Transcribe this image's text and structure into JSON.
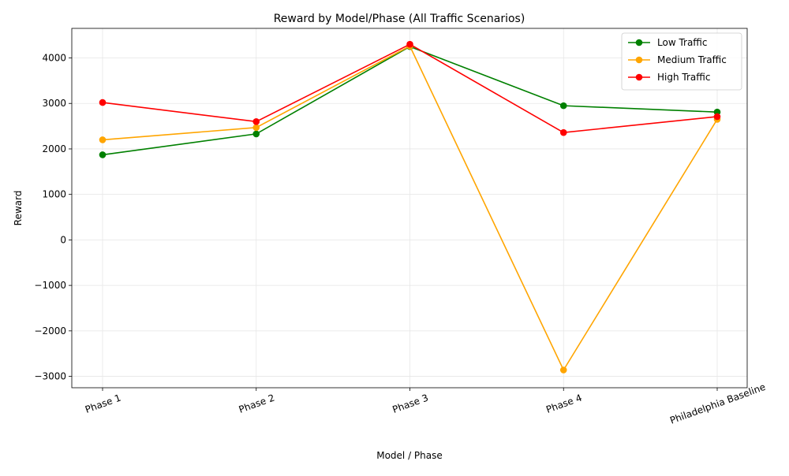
{
  "chart_data": {
    "type": "line",
    "title": "Reward by Model/Phase (All Traffic Scenarios)",
    "xlabel": "Model / Phase",
    "ylabel": "Reward",
    "categories": [
      "Phase 1",
      "Phase 2",
      "Phase 3",
      "Phase 4",
      "Philadelphia Baseline"
    ],
    "ylim": [
      -3250,
      4650
    ],
    "yticks": [
      -3000,
      -2000,
      -1000,
      0,
      1000,
      2000,
      3000,
      4000
    ],
    "ytick_labels": [
      "−3000",
      "−2000",
      "−1000",
      "0",
      "1000",
      "2000",
      "3000",
      "4000"
    ],
    "grid": true,
    "legend_position": "top-right",
    "series": [
      {
        "name": "Low Traffic",
        "color": "#008000",
        "values": [
          1870,
          2330,
          4250,
          2950,
          2810
        ]
      },
      {
        "name": "Medium Traffic",
        "color": "#ffa500",
        "values": [
          2200,
          2470,
          4260,
          -2860,
          2650
        ]
      },
      {
        "name": "High Traffic",
        "color": "#ff0000",
        "values": [
          3020,
          2600,
          4300,
          2360,
          2710
        ]
      }
    ]
  }
}
